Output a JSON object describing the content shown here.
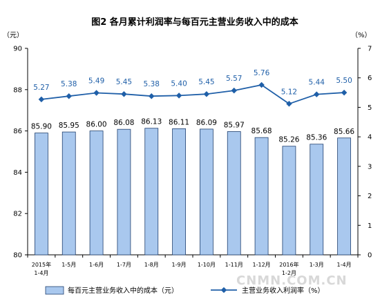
{
  "chart_data": {
    "type": "bar+line",
    "title": "图2  各月累计利润率与每百元主营业务收入中的成本",
    "y_left_unit": "（元）",
    "y_right_unit": "（%）",
    "y_left_range": [
      80,
      90
    ],
    "y_left_ticks": [
      "80",
      "82",
      "84",
      "86",
      "88",
      "90"
    ],
    "y_right_range": [
      0,
      7
    ],
    "y_right_ticks": [
      "0",
      "1",
      "2",
      "3",
      "4",
      "5",
      "6",
      "7"
    ],
    "categories": [
      [
        "2015年",
        "1-4月"
      ],
      [
        "1-5月"
      ],
      [
        "1-6月"
      ],
      [
        "1-7月"
      ],
      [
        "1-8月"
      ],
      [
        "1-9月"
      ],
      [
        "1-10月"
      ],
      [
        "1-11月"
      ],
      [
        "1-12月"
      ],
      [
        "2016年",
        "1-2月"
      ],
      [
        "1-3月"
      ],
      [
        "1-4月"
      ]
    ],
    "series": [
      {
        "name": "每百元主营业务收入中的成本（元）",
        "type": "bar",
        "axis": "left",
        "values": [
          85.9,
          85.95,
          86.0,
          86.08,
          86.13,
          86.11,
          86.09,
          85.97,
          85.68,
          85.26,
          85.36,
          85.66
        ],
        "labels": [
          "85.90",
          "85.95",
          "86.00",
          "86.08",
          "86.13",
          "86.11",
          "86.09",
          "85.97",
          "85.68",
          "85.26",
          "85.36",
          "85.66"
        ]
      },
      {
        "name": "主营业务收入利润率（%）",
        "type": "line",
        "axis": "right",
        "values": [
          5.27,
          5.38,
          5.49,
          5.45,
          5.38,
          5.4,
          5.45,
          5.57,
          5.76,
          5.12,
          5.44,
          5.5
        ],
        "labels": [
          "5.27",
          "5.38",
          "5.49",
          "5.45",
          "5.38",
          "5.40",
          "5.45",
          "5.57",
          "5.76",
          "5.12",
          "5.44",
          "5.50"
        ]
      }
    ],
    "legend_position": "bottom",
    "colors": {
      "bar_fill": "#a9c8ee",
      "bar_stroke": "#1f3f6e",
      "line": "#1f5fa8"
    }
  },
  "watermark": "CNMN.COM.CN"
}
